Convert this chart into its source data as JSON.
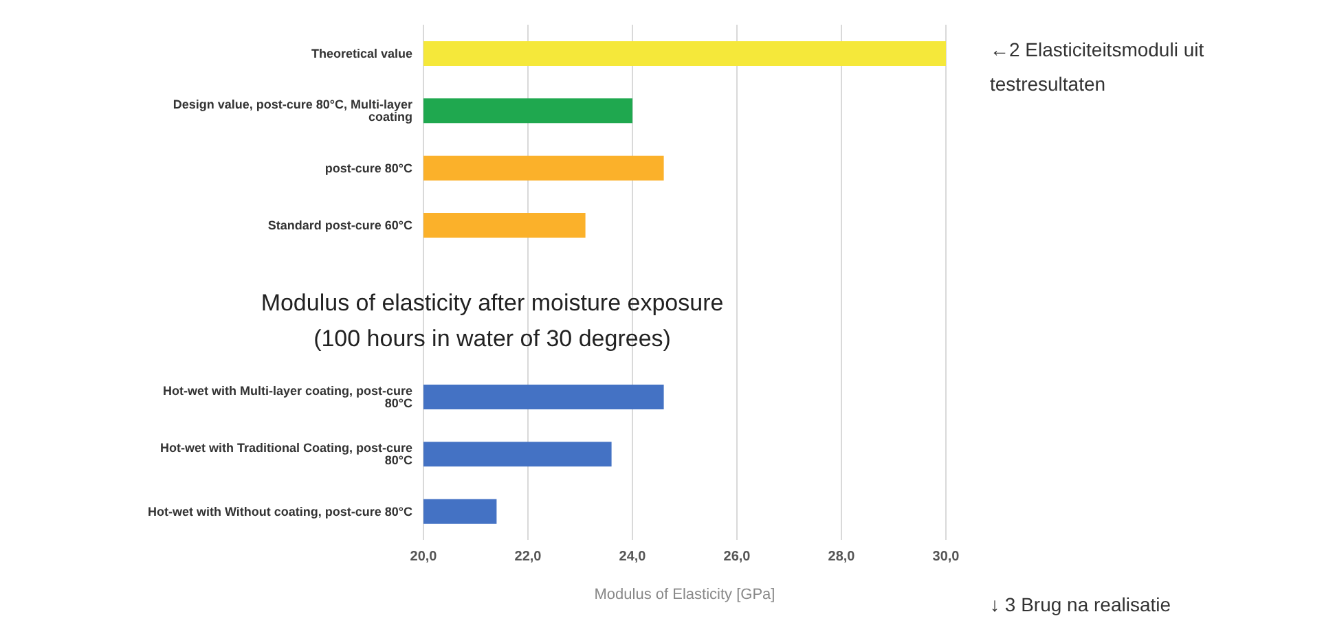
{
  "chart_data": {
    "type": "bar",
    "orientation": "horizontal",
    "categories": [
      "Theoretical value",
      "Design value, post-cure 80°C, Multi-layer coating",
      "post-cure 80°C",
      "Standard post-cure 60°C",
      null,
      null,
      "Hot-wet with Multi-layer coating, post-cure 80°C",
      "Hot-wet with Traditional Coating, post-cure 80°C",
      "Hot-wet with Without coating, post-cure 80°C"
    ],
    "values": [
      30.0,
      24.0,
      24.6,
      23.1,
      null,
      null,
      24.6,
      23.6,
      21.4
    ],
    "colors": [
      "#f5e83a",
      "#1fa84f",
      "#fbb12a",
      "#fbb12a",
      null,
      null,
      "#4472c4",
      "#4472c4",
      "#4472c4"
    ],
    "xlabel": "Modulus of Elasticity [GPa]",
    "xlim": [
      20,
      30
    ],
    "xticks": [
      {
        "value": 20,
        "label": "20,0"
      },
      {
        "value": 22,
        "label": "22,0"
      },
      {
        "value": 24,
        "label": "24,0"
      },
      {
        "value": 26,
        "label": "26,0"
      },
      {
        "value": 28,
        "label": "28,0"
      },
      {
        "value": 30,
        "label": "30,0"
      }
    ],
    "grid": "x",
    "legend": false,
    "annotations": [
      "Modulus of elasticity after moisture exposure\n(100 hours in water of 30 degrees)",
      "←2 Elasticiteitsmoduli uit testresultaten",
      "↓ 3 Brug na realisatie"
    ]
  }
}
